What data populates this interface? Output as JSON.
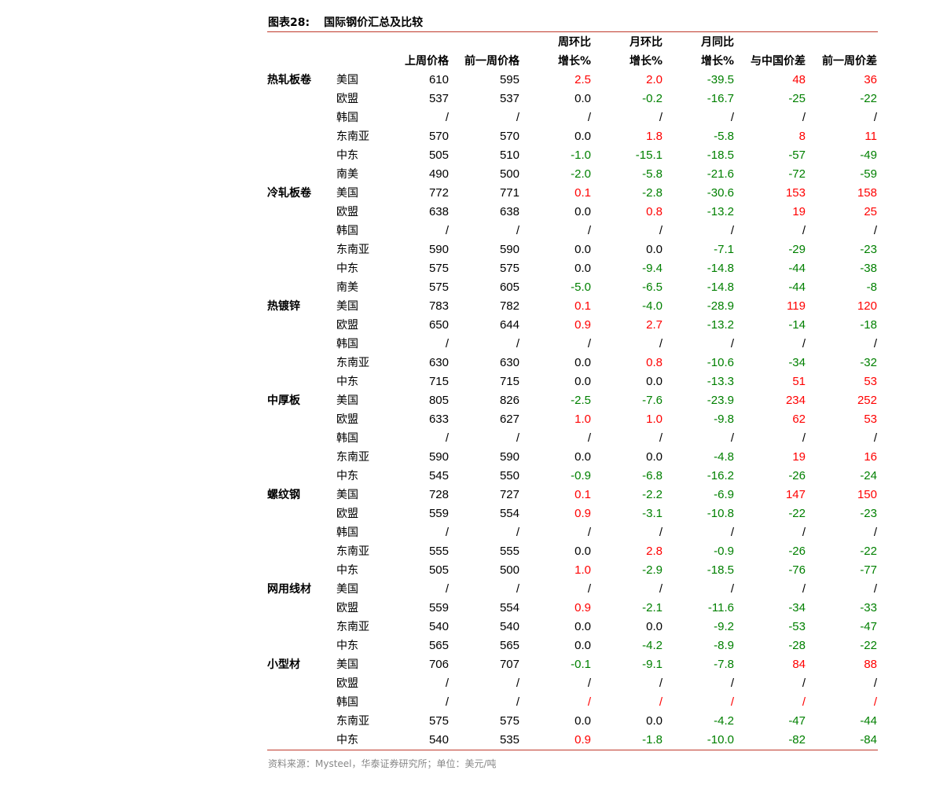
{
  "title": {
    "number": "图表28:",
    "text": "国际钢价汇总及比较"
  },
  "headers": {
    "row1": [
      "",
      "",
      "",
      "",
      "周环比",
      "月环比",
      "月同比",
      "",
      ""
    ],
    "row2": [
      "",
      "",
      "上周价格",
      "前一周价格",
      "增长%",
      "增长%",
      "增长%",
      "与中国价差",
      "前一周价差"
    ]
  },
  "colors": {
    "positive": "#ff0000",
    "negative": "#008000",
    "rule": "#c0392b"
  },
  "rows": [
    [
      "热轧板卷",
      "美国",
      "610",
      "595",
      "2.5",
      "2.0",
      "-39.5",
      "48",
      "36"
    ],
    [
      "",
      "欧盟",
      "537",
      "537",
      "0.0",
      "-0.2",
      "-16.7",
      "-25",
      "-22"
    ],
    [
      "",
      "韩国",
      "/",
      "/",
      "/",
      "/",
      "/",
      "/",
      "/"
    ],
    [
      "",
      "东南亚",
      "570",
      "570",
      "0.0",
      "1.8",
      "-5.8",
      "8",
      "11"
    ],
    [
      "",
      "中东",
      "505",
      "510",
      "-1.0",
      "-15.1",
      "-18.5",
      "-57",
      "-49"
    ],
    [
      "",
      "南美",
      "490",
      "500",
      "-2.0",
      "-5.8",
      "-21.6",
      "-72",
      "-59"
    ],
    [
      "冷轧板卷",
      "美国",
      "772",
      "771",
      "0.1",
      "-2.8",
      "-30.6",
      "153",
      "158"
    ],
    [
      "",
      "欧盟",
      "638",
      "638",
      "0.0",
      "0.8",
      "-13.2",
      "19",
      "25"
    ],
    [
      "",
      "韩国",
      "/",
      "/",
      "/",
      "/",
      "/",
      "/",
      "/"
    ],
    [
      "",
      "东南亚",
      "590",
      "590",
      "0.0",
      "0.0",
      "-7.1",
      "-29",
      "-23"
    ],
    [
      "",
      "中东",
      "575",
      "575",
      "0.0",
      "-9.4",
      "-14.8",
      "-44",
      "-38"
    ],
    [
      "",
      "南美",
      "575",
      "605",
      "-5.0",
      "-6.5",
      "-14.8",
      "-44",
      "-8"
    ],
    [
      "热镀锌",
      "美国",
      "783",
      "782",
      "0.1",
      "-4.0",
      "-28.9",
      "119",
      "120"
    ],
    [
      "",
      "欧盟",
      "650",
      "644",
      "0.9",
      "2.7",
      "-13.2",
      "-14",
      "-18"
    ],
    [
      "",
      "韩国",
      "/",
      "/",
      "/",
      "/",
      "/",
      "/",
      "/"
    ],
    [
      "",
      "东南亚",
      "630",
      "630",
      "0.0",
      "0.8",
      "-10.6",
      "-34",
      "-32"
    ],
    [
      "",
      "中东",
      "715",
      "715",
      "0.0",
      "0.0",
      "-13.3",
      "51",
      "53"
    ],
    [
      "中厚板",
      "美国",
      "805",
      "826",
      "-2.5",
      "-7.6",
      "-23.9",
      "234",
      "252"
    ],
    [
      "",
      "欧盟",
      "633",
      "627",
      "1.0",
      "1.0",
      "-9.8",
      "62",
      "53"
    ],
    [
      "",
      "韩国",
      "/",
      "/",
      "/",
      "/",
      "/",
      "/",
      "/"
    ],
    [
      "",
      "东南亚",
      "590",
      "590",
      "0.0",
      "0.0",
      "-4.8",
      "19",
      "16"
    ],
    [
      "",
      "中东",
      "545",
      "550",
      "-0.9",
      "-6.8",
      "-16.2",
      "-26",
      "-24"
    ],
    [
      "螺纹钢",
      "美国",
      "728",
      "727",
      "0.1",
      "-2.2",
      "-6.9",
      "147",
      "150"
    ],
    [
      "",
      "欧盟",
      "559",
      "554",
      "0.9",
      "-3.1",
      "-10.8",
      "-22",
      "-23"
    ],
    [
      "",
      "韩国",
      "/",
      "/",
      "/",
      "/",
      "/",
      "/",
      "/"
    ],
    [
      "",
      "东南亚",
      "555",
      "555",
      "0.0",
      "2.8",
      "-0.9",
      "-26",
      "-22"
    ],
    [
      "",
      "中东",
      "505",
      "500",
      "1.0",
      "-2.9",
      "-18.5",
      "-76",
      "-77"
    ],
    [
      "网用线材",
      "美国",
      "/",
      "/",
      "/",
      "/",
      "/",
      "/",
      "/"
    ],
    [
      "",
      "欧盟",
      "559",
      "554",
      "0.9",
      "-2.1",
      "-11.6",
      "-34",
      "-33"
    ],
    [
      "",
      "东南亚",
      "540",
      "540",
      "0.0",
      "0.0",
      "-9.2",
      "-53",
      "-47"
    ],
    [
      "",
      "中东",
      "565",
      "565",
      "0.0",
      "-4.2",
      "-8.9",
      "-28",
      "-22"
    ],
    [
      "小型材",
      "美国",
      "706",
      "707",
      "-0.1",
      "-9.1",
      "-7.8",
      "84",
      "88"
    ],
    [
      "",
      "欧盟",
      "/",
      "/",
      "/",
      "/",
      "/",
      "/",
      "/"
    ],
    [
      "",
      "韩国",
      "/",
      "/",
      "/",
      "/",
      "/",
      "/",
      "/"
    ],
    [
      "",
      "东南亚",
      "575",
      "575",
      "0.0",
      "0.0",
      "-4.2",
      "-47",
      "-44"
    ],
    [
      "",
      "中东",
      "540",
      "535",
      "0.9",
      "-1.8",
      "-10.0",
      "-82",
      "-84"
    ]
  ],
  "slash_red_rows": [
    33
  ],
  "source": "资料来源：Mysteel，华泰证券研究所；单位：美元/吨"
}
